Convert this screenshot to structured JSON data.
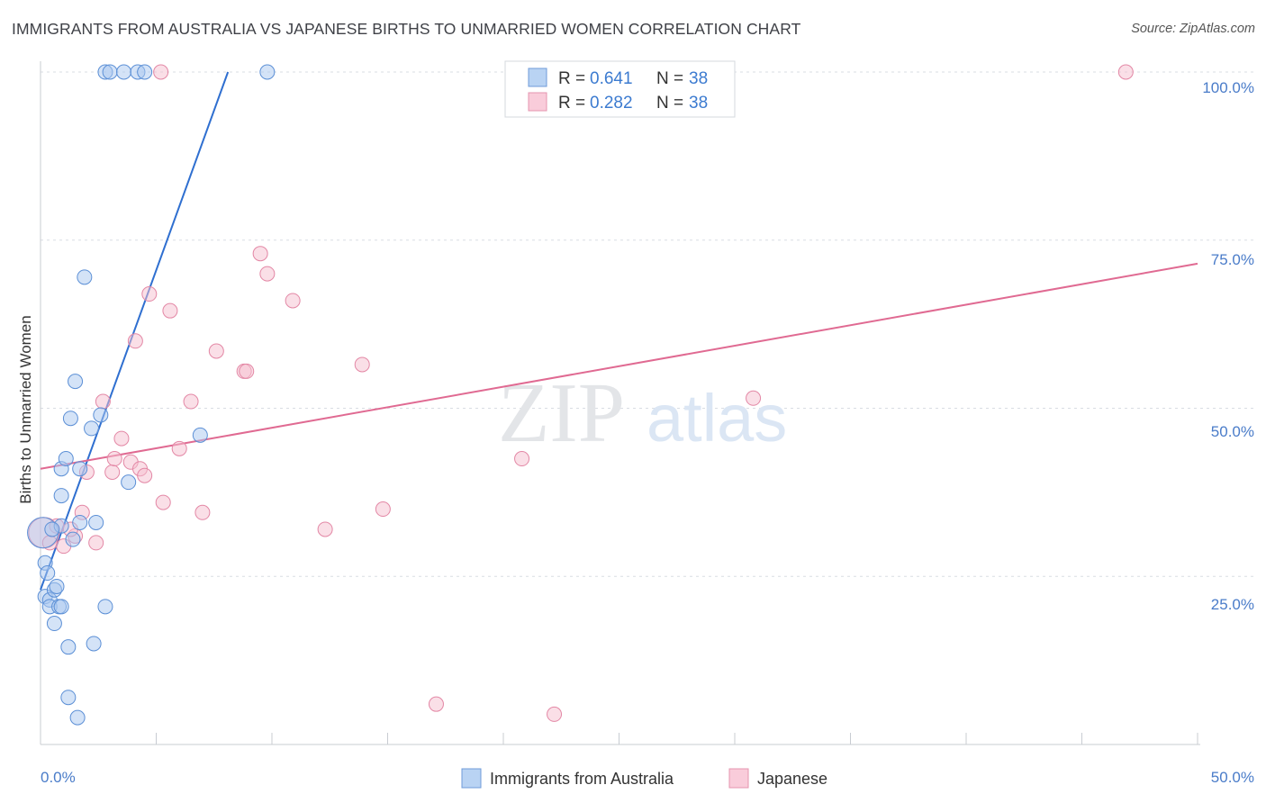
{
  "header": {
    "title": "IMMIGRANTS FROM AUSTRALIA VS JAPANESE BIRTHS TO UNMARRIED WOMEN CORRELATION CHART",
    "source": "Source: ZipAtlas.com"
  },
  "watermark": {
    "zip": "ZIP",
    "atlas": "atlas"
  },
  "colors": {
    "blue_fill": "#a9c8f0",
    "blue_stroke": "#5b8fd6",
    "blue_line": "#2f6fd0",
    "pink_fill": "#f6bfd0",
    "pink_stroke": "#e387a5",
    "pink_line": "#e06a92",
    "tick_text": "#4a7cc9",
    "grid": "#d9dde3"
  },
  "legend": {
    "rows": [
      {
        "r_label": "R =",
        "r_value": "0.641",
        "n_label": "N =",
        "n_value": "38"
      },
      {
        "r_label": "R =",
        "r_value": "0.282",
        "n_label": "N =",
        "n_value": "38"
      }
    ]
  },
  "chart_data": {
    "type": "scatter",
    "title": "IMMIGRANTS FROM AUSTRALIA VS JAPANESE BIRTHS TO UNMARRIED WOMEN CORRELATION CHART",
    "xlabel": "",
    "ylabel": "Births to Unmarried Women",
    "xlim": [
      0,
      50
    ],
    "ylim": [
      0,
      100
    ],
    "x_tick_labels": [
      "0.0%",
      "50.0%"
    ],
    "y_ticks": [
      25,
      50,
      75,
      100
    ],
    "y_tick_labels": [
      "25.0%",
      "50.0%",
      "75.0%",
      "100.0%"
    ],
    "grid": true,
    "series": [
      {
        "name": "Immigrants from Australia",
        "color": "#5b8fd6",
        "r": 0.641,
        "n": 38,
        "trend": {
          "x": [
            0.0,
            8.1
          ],
          "y": [
            23.0,
            100.0
          ]
        },
        "points": [
          {
            "x": 0.1,
            "y": 31.5,
            "big": true
          },
          {
            "x": 0.2,
            "y": 27.0
          },
          {
            "x": 0.3,
            "y": 25.5
          },
          {
            "x": 0.2,
            "y": 22.0
          },
          {
            "x": 0.4,
            "y": 21.5
          },
          {
            "x": 0.4,
            "y": 20.5
          },
          {
            "x": 0.6,
            "y": 23.0
          },
          {
            "x": 0.7,
            "y": 23.5
          },
          {
            "x": 0.6,
            "y": 18.0
          },
          {
            "x": 0.8,
            "y": 20.5
          },
          {
            "x": 0.9,
            "y": 20.5
          },
          {
            "x": 0.9,
            "y": 32.5
          },
          {
            "x": 0.9,
            "y": 37.0
          },
          {
            "x": 0.9,
            "y": 41.0
          },
          {
            "x": 1.1,
            "y": 42.5
          },
          {
            "x": 1.2,
            "y": 14.5
          },
          {
            "x": 1.2,
            "y": 7.0
          },
          {
            "x": 1.3,
            "y": 48.5
          },
          {
            "x": 1.4,
            "y": 30.5
          },
          {
            "x": 1.5,
            "y": 54.0
          },
          {
            "x": 1.6,
            "y": 4.0
          },
          {
            "x": 1.7,
            "y": 33.0
          },
          {
            "x": 1.7,
            "y": 41.0
          },
          {
            "x": 1.9,
            "y": 69.5
          },
          {
            "x": 2.2,
            "y": 47.0
          },
          {
            "x": 2.3,
            "y": 15.0
          },
          {
            "x": 2.4,
            "y": 33.0
          },
          {
            "x": 2.6,
            "y": 49.0
          },
          {
            "x": 2.8,
            "y": 20.5
          },
          {
            "x": 3.8,
            "y": 39.0
          },
          {
            "x": 6.9,
            "y": 46.0
          },
          {
            "x": 2.8,
            "y": 100.0
          },
          {
            "x": 3.0,
            "y": 100.0
          },
          {
            "x": 3.6,
            "y": 100.0
          },
          {
            "x": 4.2,
            "y": 100.0
          },
          {
            "x": 4.5,
            "y": 100.0
          },
          {
            "x": 9.8,
            "y": 100.0
          },
          {
            "x": 0.5,
            "y": 32.0
          }
        ]
      },
      {
        "name": "Japanese",
        "color": "#e387a5",
        "r": 0.282,
        "n": 38,
        "trend": {
          "x": [
            0.0,
            50.0
          ],
          "y": [
            41.0,
            71.5
          ]
        },
        "points": [
          {
            "x": 0.15,
            "y": 31.5,
            "big": true
          },
          {
            "x": 0.4,
            "y": 30.0
          },
          {
            "x": 0.7,
            "y": 32.5
          },
          {
            "x": 1.0,
            "y": 29.5
          },
          {
            "x": 1.5,
            "y": 31.0
          },
          {
            "x": 1.8,
            "y": 34.5
          },
          {
            "x": 2.0,
            "y": 40.5
          },
          {
            "x": 2.4,
            "y": 30.0
          },
          {
            "x": 2.7,
            "y": 51.0
          },
          {
            "x": 3.1,
            "y": 40.5
          },
          {
            "x": 3.2,
            "y": 42.5
          },
          {
            "x": 3.5,
            "y": 45.5
          },
          {
            "x": 3.9,
            "y": 42.0
          },
          {
            "x": 4.1,
            "y": 60.0
          },
          {
            "x": 4.3,
            "y": 41.0
          },
          {
            "x": 4.5,
            "y": 40.0
          },
          {
            "x": 4.7,
            "y": 67.0
          },
          {
            "x": 5.3,
            "y": 36.0
          },
          {
            "x": 5.6,
            "y": 64.5
          },
          {
            "x": 6.0,
            "y": 44.0
          },
          {
            "x": 6.5,
            "y": 51.0
          },
          {
            "x": 7.0,
            "y": 34.5
          },
          {
            "x": 7.6,
            "y": 58.5
          },
          {
            "x": 8.8,
            "y": 55.5
          },
          {
            "x": 8.9,
            "y": 55.5
          },
          {
            "x": 9.5,
            "y": 73.0
          },
          {
            "x": 9.8,
            "y": 70.0
          },
          {
            "x": 10.9,
            "y": 66.0
          },
          {
            "x": 12.3,
            "y": 32.0
          },
          {
            "x": 13.9,
            "y": 56.5
          },
          {
            "x": 14.8,
            "y": 35.0
          },
          {
            "x": 17.1,
            "y": 6.0
          },
          {
            "x": 20.8,
            "y": 42.5
          },
          {
            "x": 22.2,
            "y": 4.5
          },
          {
            "x": 30.8,
            "y": 51.5
          },
          {
            "x": 46.9,
            "y": 100.0
          },
          {
            "x": 5.2,
            "y": 100.0
          },
          {
            "x": 1.3,
            "y": 32.0
          }
        ]
      }
    ]
  },
  "bottom_legend": {
    "items": [
      {
        "label": "Immigrants from Australia"
      },
      {
        "label": "Japanese"
      }
    ]
  }
}
